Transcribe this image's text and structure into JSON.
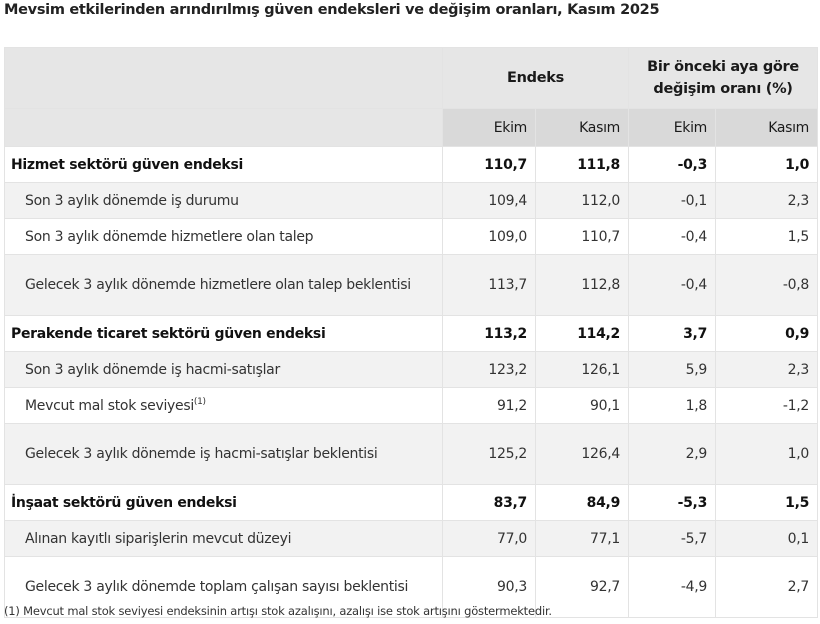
{
  "title": "Mevsim etkilerinden arındırılmış güven endeksleri ve değişim oranları, Kasım 2025",
  "table": {
    "header": {
      "endeks": "Endeks",
      "change_line1": "Bir önceki aya göre",
      "change_line2": "değişim oranı (%)",
      "sub": [
        "Ekim",
        "Kasım",
        "Ekim",
        "Kasım"
      ]
    },
    "rows": [
      {
        "label": "Hizmet sektörü güven endeksi",
        "sup": "",
        "type": "main",
        "values": [
          "110,7",
          "111,8",
          "-0,3",
          "1,0"
        ]
      },
      {
        "label": "Son 3 aylık dönemde iş durumu",
        "sup": "",
        "type": "sub",
        "values": [
          "109,4",
          "112,0",
          "-0,1",
          "2,3"
        ]
      },
      {
        "label": "Son 3 aylık dönemde hizmetlere olan talep",
        "sup": "",
        "type": "sub",
        "values": [
          "109,0",
          "110,7",
          "-0,4",
          "1,5"
        ]
      },
      {
        "label": "Gelecek 3 aylık dönemde hizmetlere olan talep beklentisi",
        "sup": "",
        "type": "sub",
        "values": [
          "113,7",
          "112,8",
          "-0,4",
          "-0,8"
        ]
      },
      {
        "label": "Perakende ticaret sektörü güven endeksi",
        "sup": "",
        "type": "main",
        "values": [
          "113,2",
          "114,2",
          "3,7",
          "0,9"
        ]
      },
      {
        "label": "Son 3 aylık dönemde iş hacmi-satışlar",
        "sup": "",
        "type": "sub",
        "values": [
          "123,2",
          "126,1",
          "5,9",
          "2,3"
        ]
      },
      {
        "label": "Mevcut mal stok seviyesi",
        "sup": "(1)",
        "type": "sub",
        "values": [
          "91,2",
          "90,1",
          "1,8",
          "-1,2"
        ]
      },
      {
        "label": "Gelecek 3 aylık dönemde iş hacmi-satışlar beklentisi",
        "sup": "",
        "type": "sub",
        "values": [
          "125,2",
          "126,4",
          "2,9",
          "1,0"
        ]
      },
      {
        "label": "İnşaat sektörü güven endeksi",
        "sup": "",
        "type": "main",
        "values": [
          "83,7",
          "84,9",
          "-5,3",
          "1,5"
        ]
      },
      {
        "label": "Alınan kayıtlı siparişlerin mevcut düzeyi",
        "sup": "",
        "type": "sub",
        "values": [
          "77,0",
          "77,1",
          "-5,7",
          "0,1"
        ]
      },
      {
        "label": "Gelecek 3 aylık dönemde toplam çalışan sayısı beklentisi",
        "sup": "",
        "type": "sub",
        "values": [
          "90,3",
          "92,7",
          "-4,9",
          "2,7"
        ]
      }
    ]
  },
  "footnote": "(1) Mevcut mal stok seviyesi endeksinin artışı stok azalışını, azalışı ise stok artışını göstermektedir.",
  "colors": {
    "header_bg": "#e6e6e6",
    "subheader_bg": "#d9d9d9",
    "stripe_bg": "#f2f2f2",
    "border": "#e3e3e3"
  }
}
